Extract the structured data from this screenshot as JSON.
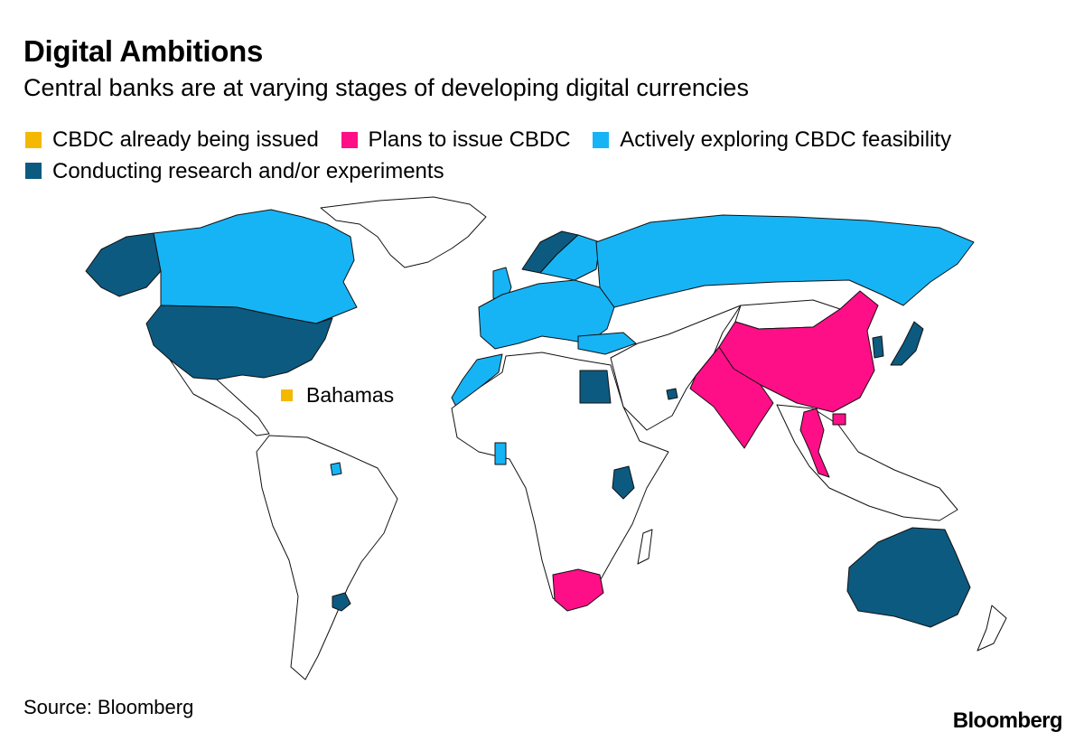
{
  "title": "Digital Ambitions",
  "subtitle": "Central banks are at varying stages of developing digital currencies",
  "legend": [
    {
      "label": "CBDC already being issued",
      "color": "#f5b800"
    },
    {
      "label": "Plans to issue CBDC",
      "color": "#ff0f87"
    },
    {
      "label": "Actively exploring CBDC feasibility",
      "color": "#17b4f5"
    },
    {
      "label": "Conducting research and/or experiments",
      "color": "#0d5a80"
    }
  ],
  "map": {
    "annotation": {
      "label": "Bahamas",
      "status_color": "#f5b800"
    },
    "default_land_color": "#ffffff",
    "regions": [
      {
        "name": "canada",
        "status": "exploring"
      },
      {
        "name": "alaska",
        "status": "research"
      },
      {
        "name": "usa",
        "status": "research"
      },
      {
        "name": "greenland",
        "status": "none"
      },
      {
        "name": "mexico-central-america",
        "status": "none"
      },
      {
        "name": "south-america",
        "status": "none"
      },
      {
        "name": "uruguay",
        "status": "research"
      },
      {
        "name": "french-guiana",
        "status": "exploring"
      },
      {
        "name": "europe",
        "status": "exploring"
      },
      {
        "name": "uk",
        "status": "exploring"
      },
      {
        "name": "norway",
        "status": "research"
      },
      {
        "name": "sweden",
        "status": "exploring"
      },
      {
        "name": "russia",
        "status": "exploring"
      },
      {
        "name": "turkey",
        "status": "exploring"
      },
      {
        "name": "morocco",
        "status": "exploring"
      },
      {
        "name": "africa",
        "status": "none"
      },
      {
        "name": "egypt",
        "status": "research"
      },
      {
        "name": "ghana",
        "status": "exploring"
      },
      {
        "name": "kenya",
        "status": "research"
      },
      {
        "name": "south-africa",
        "status": "plans"
      },
      {
        "name": "madagascar",
        "status": "none"
      },
      {
        "name": "middle-east-central-asia",
        "status": "none"
      },
      {
        "name": "uae",
        "status": "research"
      },
      {
        "name": "india",
        "status": "plans"
      },
      {
        "name": "china",
        "status": "plans"
      },
      {
        "name": "mongolia",
        "status": "none"
      },
      {
        "name": "thailand",
        "status": "plans"
      },
      {
        "name": "cambodia",
        "status": "plans"
      },
      {
        "name": "korea",
        "status": "research"
      },
      {
        "name": "japan",
        "status": "research"
      },
      {
        "name": "southeast-asia",
        "status": "none"
      },
      {
        "name": "australia",
        "status": "research"
      },
      {
        "name": "new-zealand",
        "status": "none"
      }
    ]
  },
  "source": "Source: Bloomberg",
  "logo": "Bloomberg"
}
